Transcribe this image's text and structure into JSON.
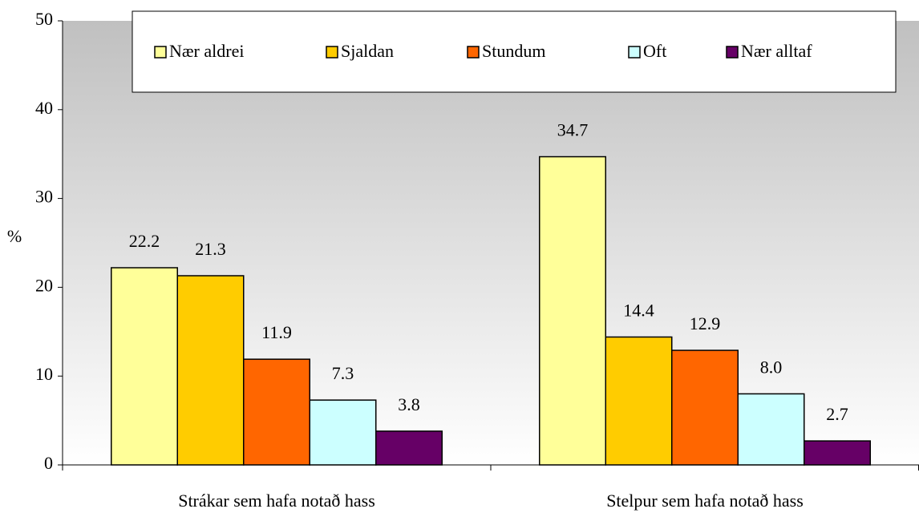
{
  "chart_data": {
    "type": "bar",
    "categories": [
      "Strákar sem hafa notað hass",
      "Stelpur sem hafa notað hass"
    ],
    "y_label": "%",
    "ylim": [
      0,
      50
    ],
    "yticks": [
      0,
      10,
      20,
      30,
      40,
      50
    ],
    "series": [
      {
        "name": "Nær aldrei",
        "color": "#ffff99",
        "values": [
          22.2,
          34.7
        ],
        "value_labels": [
          "22.2",
          "34.7"
        ]
      },
      {
        "name": "Sjaldan",
        "color": "#ffcc00",
        "values": [
          21.3,
          14.4
        ],
        "value_labels": [
          "21.3",
          "14.4"
        ]
      },
      {
        "name": "Stundum",
        "color": "#ff6600",
        "values": [
          11.9,
          12.9
        ],
        "value_labels": [
          "11.9",
          "12.9"
        ]
      },
      {
        "name": "Oft",
        "color": "#ccffff",
        "values": [
          7.3,
          8.0
        ],
        "value_labels": [
          "7.3",
          "8.0"
        ]
      },
      {
        "name": "Nær alltaf",
        "color": "#660066",
        "values": [
          3.8,
          2.7
        ],
        "value_labels": [
          "3.8",
          "2.7"
        ]
      }
    ],
    "legend": "top"
  }
}
